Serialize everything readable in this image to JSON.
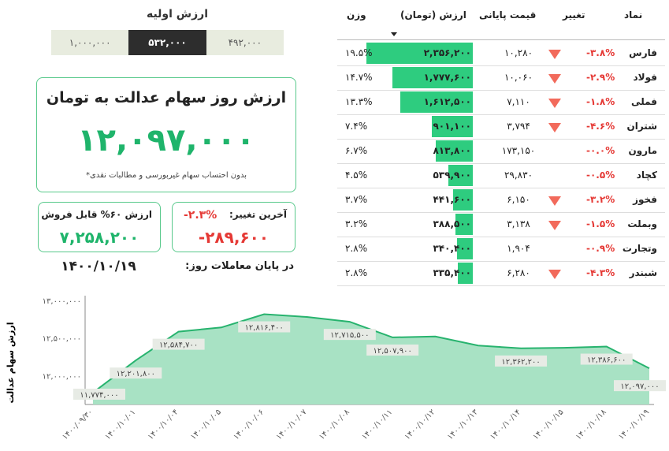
{
  "initial": {
    "title": "ارزش اولیه",
    "options": [
      {
        "label": "۱,۰۰۰,۰۰۰",
        "selected": false
      },
      {
        "label": "۵۳۲,۰۰۰",
        "selected": true
      },
      {
        "label": "۴۹۲,۰۰۰",
        "selected": false
      }
    ]
  },
  "main": {
    "title": "ارزش روز سهام عدالت به تومان",
    "value": "۱۲,۰۹۷,۰۰۰",
    "note": "*بدون احتساب سهام غیربورسی و مطالبات نقدی"
  },
  "sell_card": {
    "label": "ارزش ۶۰% قابل فروش",
    "value": "۷,۲۵۸,۲۰۰"
  },
  "change_card": {
    "label": "آخرین تغییر:",
    "pct": "-۲.۳%",
    "value": "-۲۸۹,۶۰۰"
  },
  "date": "۱۴۰۰/۱۰/۱۹",
  "eod_label": "در پایان معاملات روز:",
  "table": {
    "headers": {
      "symbol": "نماد",
      "change": "تغییر",
      "price": "قیمت پایانی",
      "value": "ارزش (تومان)",
      "weight": "وزن"
    },
    "colors": {
      "bar": "#2ecc7f",
      "down": "#f26a5b",
      "neg": "#e53935"
    },
    "rows": [
      {
        "symbol": "فارس",
        "change": "-۳.۸%",
        "down_arrow": true,
        "price": "۱۰,۲۸۰",
        "value": "۲,۳۵۶,۲۰۰",
        "value_num": 2356200,
        "weight": "۱۹.۵%"
      },
      {
        "symbol": "فولاد",
        "change": "-۲.۹%",
        "down_arrow": true,
        "price": "۱۰,۰۶۰",
        "value": "۱,۷۷۷,۶۰۰",
        "value_num": 1777600,
        "weight": "۱۴.۷%"
      },
      {
        "symbol": "فملی",
        "change": "-۱.۸%",
        "down_arrow": true,
        "price": "۷,۱۱۰",
        "value": "۱,۶۱۲,۵۰۰",
        "value_num": 1612500,
        "weight": "۱۳.۳%"
      },
      {
        "symbol": "شتران",
        "change": "-۴.۶%",
        "down_arrow": true,
        "price": "۳,۷۹۴",
        "value": "۹۰۱,۱۰۰",
        "value_num": 901100,
        "weight": "۷.۴%"
      },
      {
        "symbol": "مارون",
        "change": "-۰.۰%",
        "down_arrow": false,
        "price": "۱۷۳,۱۵۰",
        "value": "۸۱۳,۸۰۰",
        "value_num": 813800,
        "weight": "۶.۷%"
      },
      {
        "symbol": "کچاد",
        "change": "-۰.۵%",
        "down_arrow": false,
        "price": "۲۹,۸۳۰",
        "value": "۵۳۹,۹۰۰",
        "value_num": 539900,
        "weight": "۴.۵%"
      },
      {
        "symbol": "فخوز",
        "change": "-۳.۲%",
        "down_arrow": true,
        "price": "۶,۱۵۰",
        "value": "۴۴۱,۶۰۰",
        "value_num": 441600,
        "weight": "۳.۷%"
      },
      {
        "symbol": "وبملت",
        "change": "-۱.۵%",
        "down_arrow": true,
        "price": "۳,۱۳۸",
        "value": "۳۸۸,۵۰۰",
        "value_num": 388500,
        "weight": "۳.۲%"
      },
      {
        "symbol": "وتجارت",
        "change": "-۰.۹%",
        "down_arrow": false,
        "price": "۱,۹۰۴",
        "value": "۳۴۰,۴۰۰",
        "value_num": 340400,
        "weight": "۲.۸%"
      },
      {
        "symbol": "شبندر",
        "change": "-۴.۳%",
        "down_arrow": true,
        "price": "۶,۲۸۰",
        "value": "۳۳۵,۴۰۰",
        "value_num": 335400,
        "weight": "۲.۸%"
      }
    ]
  },
  "chart_data": {
    "type": "area",
    "ylabel": "ارزش سهام عدالت",
    "ylim": [
      11700000,
      13000000
    ],
    "yticks": [
      {
        "value": 12000000,
        "label": "۱۲,۰۰۰,۰۰۰"
      },
      {
        "value": 12500000,
        "label": "۱۲,۵۰۰,۰۰۰"
      },
      {
        "value": 13000000,
        "label": "۱۳,۰۰۰,۰۰۰"
      }
    ],
    "x": [
      "۱۴۰۰/۰۹/۳۰",
      "۱۴۰۰/۱۰/۰۱",
      "۱۴۰۰/۱۰/۰۴",
      "۱۴۰۰/۱۰/۰۵",
      "۱۴۰۰/۱۰/۰۶",
      "۱۴۰۰/۱۰/۰۷",
      "۱۴۰۰/۱۰/۰۸",
      "۱۴۰۰/۱۰/۱۱",
      "۱۴۰۰/۱۰/۱۲",
      "۱۴۰۰/۱۰/۱۳",
      "۱۴۰۰/۱۰/۱۴",
      "۱۴۰۰/۱۰/۱۵",
      "۱۴۰۰/۱۰/۱۸",
      "۱۴۰۰/۱۰/۱۹"
    ],
    "values": [
      11774000,
      12201800,
      12584700,
      12640000,
      12816400,
      12780000,
      12715500,
      12507900,
      12520000,
      12400000,
      12362200,
      12370000,
      12386600,
      12097000
    ],
    "data_labels": [
      {
        "i": 0,
        "text": "۱۱,۷۷۴,۰۰۰"
      },
      {
        "i": 1,
        "text": "۱۲,۲۰۱,۸۰۰"
      },
      {
        "i": 2,
        "text": "۱۲,۵۸۴,۷۰۰"
      },
      {
        "i": 4,
        "text": "۱۲,۸۱۶,۴۰۰"
      },
      {
        "i": 6,
        "text": "۱۲,۷۱۵,۵۰۰"
      },
      {
        "i": 7,
        "text": "۱۲,۵۰۷,۹۰۰"
      },
      {
        "i": 10,
        "text": "۱۲,۳۶۲,۲۰۰"
      },
      {
        "i": 12,
        "text": "۱۲,۳۸۶,۶۰۰"
      },
      {
        "i": 13,
        "text": "۱۲,۰۹۷,۰۰۰"
      }
    ],
    "colors": {
      "fill": "#a8e2c4",
      "line": "#27b36e",
      "label_bg": "#e7ebe5"
    },
    "grid": false
  }
}
